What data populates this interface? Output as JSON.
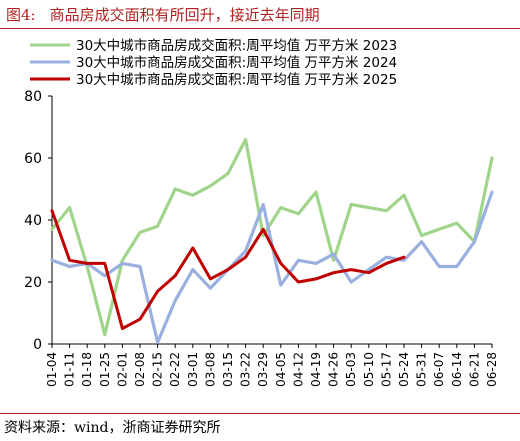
{
  "figure": {
    "label": "图4:",
    "title": "商品房成交面积有所回升，接近去年同期",
    "source": "资料来源：wind，浙商证券研究所"
  },
  "chart_data": {
    "type": "line",
    "x": [
      "01-04",
      "01-11",
      "01-18",
      "01-25",
      "02-01",
      "02-08",
      "02-15",
      "02-22",
      "03-01",
      "03-08",
      "03-15",
      "03-22",
      "03-29",
      "04-05",
      "04-12",
      "04-19",
      "04-26",
      "05-03",
      "05-10",
      "05-17",
      "05-24",
      "05-31",
      "06-07",
      "06-14",
      "06-21",
      "06-28"
    ],
    "ylim": [
      0,
      80
    ],
    "yticks": [
      0,
      20,
      40,
      60,
      80
    ],
    "grid": false,
    "legend_position": "top",
    "series": [
      {
        "name": "30大中城市商品房成交面积:周平均值 万平方米 2023",
        "color": "#9fd48a",
        "values": [
          37,
          44,
          25,
          3,
          27,
          36,
          38,
          50,
          48,
          51,
          55,
          66,
          35,
          44,
          42,
          49,
          27,
          45,
          44,
          43,
          48,
          35,
          37,
          39,
          33,
          60
        ]
      },
      {
        "name": "30大中城市商品房成交面积:周平均值 万平方米 2024",
        "color": "#9ab0e0",
        "values": [
          27,
          25,
          26,
          22,
          26,
          25,
          0.5,
          14,
          24,
          18,
          24,
          30,
          45,
          19,
          27,
          26,
          29,
          20,
          24,
          28,
          27,
          33,
          25,
          25,
          33,
          49
        ]
      },
      {
        "name": "30大中城市商品房成交面积:周平均值 万平方米 2025",
        "color": "#c00000",
        "values": [
          43,
          27,
          26,
          26,
          5,
          8,
          17,
          22,
          31,
          21,
          24,
          28,
          37,
          26,
          20,
          21,
          23,
          24,
          23,
          26,
          28,
          null,
          null,
          null,
          null,
          null
        ]
      }
    ]
  }
}
